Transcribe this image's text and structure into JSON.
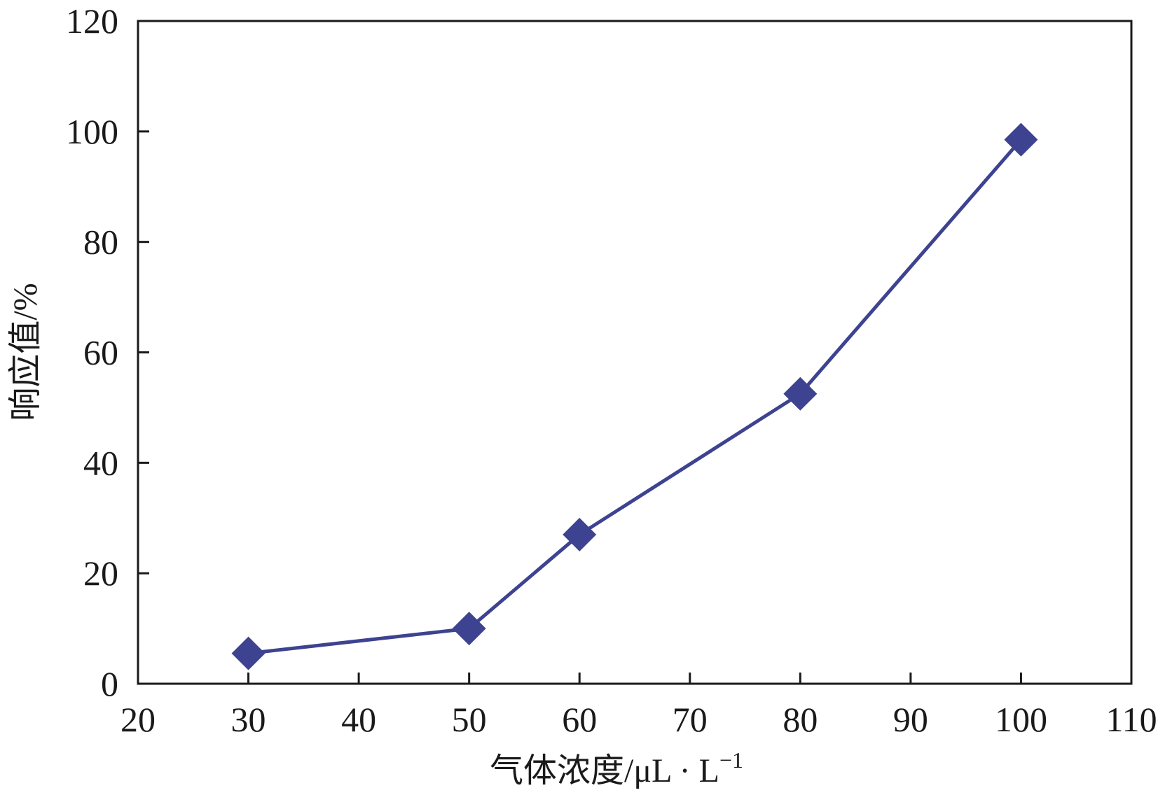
{
  "chart_data": {
    "type": "line",
    "title": "",
    "xlabel": "气体浓度/μL · L",
    "xlabel_sup": "−1",
    "ylabel": "响应值/%",
    "xlim": [
      20,
      110
    ],
    "ylim": [
      0,
      120
    ],
    "xticks": [
      20,
      30,
      40,
      50,
      60,
      70,
      80,
      90,
      100,
      110
    ],
    "yticks": [
      0,
      20,
      40,
      60,
      80,
      100,
      120
    ],
    "grid": false,
    "legend": "none",
    "series": [
      {
        "marker": "diamond",
        "color": "#3d4390",
        "x": [
          30,
          50,
          60,
          80,
          100
        ],
        "y": [
          5.5,
          10,
          27,
          52.5,
          98.5
        ]
      }
    ]
  }
}
